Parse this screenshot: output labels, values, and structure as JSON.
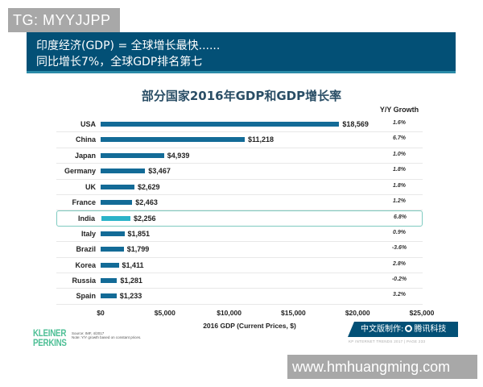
{
  "overlay": {
    "top_label": "TG: MYYJJPP",
    "bottom_label": "www.hmhuangming.com"
  },
  "banner": {
    "line1": "印度经济(GDP) = 全球增长最快......",
    "line2": "同比增长7%，全球GDP排名第七",
    "color": "#035076"
  },
  "chart": {
    "title": "部分国家2016年GDP和GDP增长率",
    "growth_header": "Y/Y Growth",
    "xlabel": "2016 GDP (Current Prices, $)",
    "ticks": [
      "$0",
      "$5,000",
      "$10,000",
      "$15,000",
      "$20,000",
      "$25,000"
    ],
    "rows": [
      {
        "country": "USA",
        "value_label": "$18,569",
        "growth": "1.6%"
      },
      {
        "country": "China",
        "value_label": "$11,218",
        "growth": "6.7%"
      },
      {
        "country": "Japan",
        "value_label": "$4,939",
        "growth": "1.0%"
      },
      {
        "country": "Germany",
        "value_label": "$3,467",
        "growth": "1.8%"
      },
      {
        "country": "UK",
        "value_label": "$2,629",
        "growth": "1.8%"
      },
      {
        "country": "France",
        "value_label": "$2,463",
        "growth": "1.2%"
      },
      {
        "country": "India",
        "value_label": "$2,256",
        "growth": "6.8%"
      },
      {
        "country": "Italy",
        "value_label": "$1,851",
        "growth": "0.9%"
      },
      {
        "country": "Brazil",
        "value_label": "$1,799",
        "growth": "-3.6%"
      },
      {
        "country": "Korea",
        "value_label": "$1,411",
        "growth": "2.8%"
      },
      {
        "country": "Russia",
        "value_label": "$1,281",
        "growth": "-0.2%"
      },
      {
        "country": "Spain",
        "value_label": "$1,233",
        "growth": "3.2%"
      }
    ]
  },
  "footer": {
    "logo_line1": "KLEINER",
    "logo_line2": "PERKINS",
    "source_line1": "Source: IMF, 4/2017",
    "source_line2": "Note: Y/Y growth based on constant prices.",
    "cn_badge_prefix": "中文版制作:",
    "cn_badge_brand": "腾讯科技",
    "kp_footer": "KP INTERNET TRENDS 2017  |  PAGE 233"
  },
  "chart_data": {
    "type": "bar",
    "orientation": "horizontal",
    "title": "部分国家2016年GDP和GDP增长率",
    "xlabel": "2016 GDP (Current Prices, $)",
    "ylabel": "",
    "xlim": [
      0,
      25000
    ],
    "x_ticks": [
      0,
      5000,
      10000,
      15000,
      20000,
      25000
    ],
    "grid": false,
    "categories": [
      "USA",
      "China",
      "Japan",
      "Germany",
      "UK",
      "France",
      "India",
      "Italy",
      "Brazil",
      "Korea",
      "Russia",
      "Spain"
    ],
    "series": [
      {
        "name": "2016 GDP (Current Prices, $B)",
        "values": [
          18569,
          11218,
          4939,
          3467,
          2629,
          2463,
          2256,
          1851,
          1799,
          1411,
          1281,
          1233
        ]
      },
      {
        "name": "Y/Y Growth (%)",
        "values": [
          1.6,
          6.7,
          1.0,
          1.8,
          1.8,
          1.2,
          6.8,
          0.9,
          -3.6,
          2.8,
          -0.2,
          3.2
        ]
      }
    ],
    "highlight": "India",
    "colors": {
      "bar": "#136b97",
      "highlight_bar": "#2bb3c9",
      "highlight_border": "#7fcbc1"
    },
    "annotations": [
      "Source: IMF, 4/2017",
      "Note: Y/Y growth based on constant prices."
    ]
  }
}
